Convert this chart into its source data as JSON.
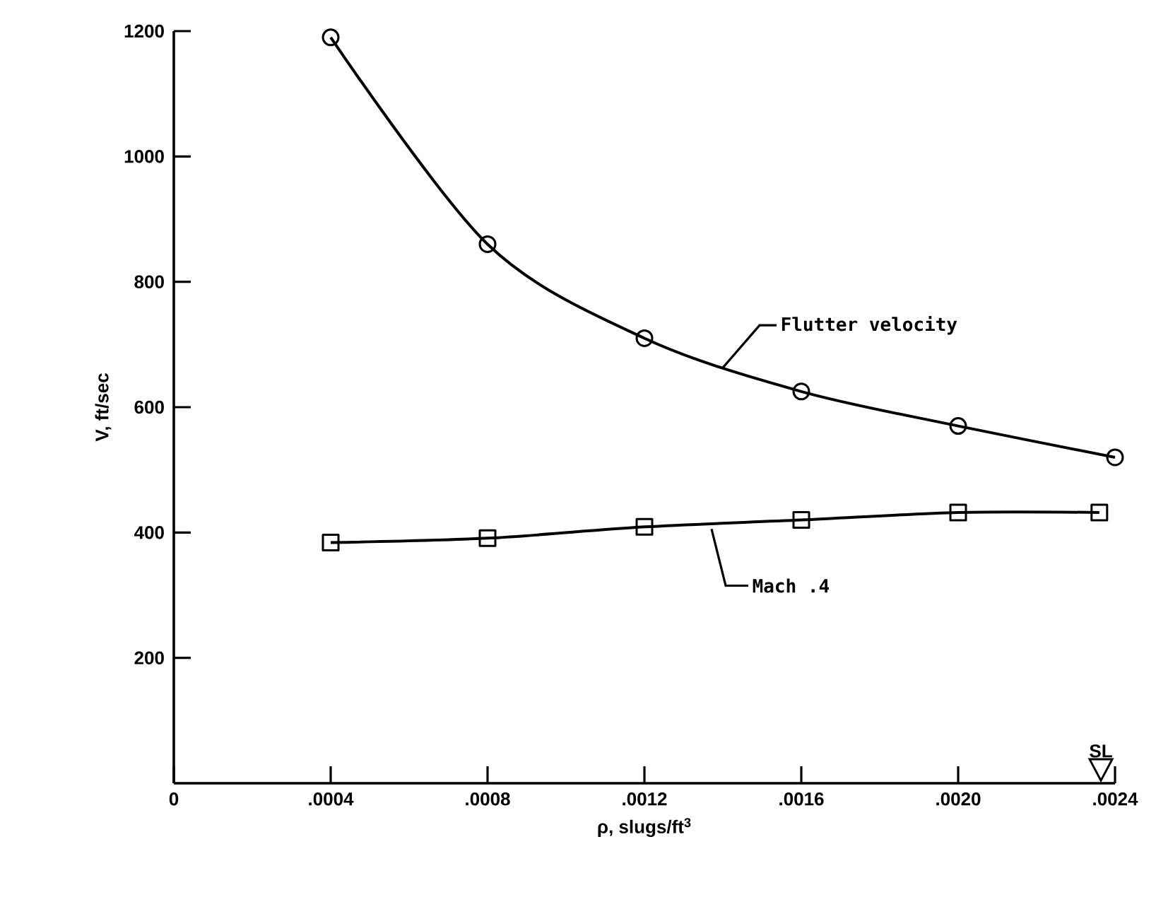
{
  "chart_data": {
    "type": "line",
    "xlabel": "ρ, slugs/ft$^{3}$",
    "ylabel": "V, ft/sec",
    "xlim": [
      0,
      0.0024
    ],
    "ylim": [
      0,
      1200
    ],
    "xticks": [
      0,
      {
        "value": 0.0004,
        "label": ".0004"
      },
      {
        "value": 0.0008,
        "label": ".0008"
      },
      {
        "value": 0.0012,
        "label": ".0012"
      },
      {
        "value": 0.0016,
        "label": ".0016"
      },
      {
        "value": 0.002,
        "label": ".0020"
      },
      {
        "value": 0.0024,
        "label": ".0024"
      }
    ],
    "yticks": [
      200,
      400,
      600,
      800,
      1000,
      1200
    ],
    "series": [
      {
        "name": "Flutter velocity",
        "color": "#000000",
        "marker": "circle",
        "x": [
          0.0004,
          0.0008,
          0.0012,
          0.0016,
          0.002,
          0.0024
        ],
        "values": [
          1190,
          860,
          710,
          625,
          570,
          520
        ]
      },
      {
        "name": "Mach .4",
        "color": "#000000",
        "marker": "square",
        "x": [
          0.0004,
          0.0008,
          0.0012,
          0.0016,
          0.002,
          0.00236
        ],
        "values": [
          384,
          391,
          409,
          420,
          432,
          432
        ]
      }
    ],
    "annotations": [
      "SL"
    ]
  }
}
